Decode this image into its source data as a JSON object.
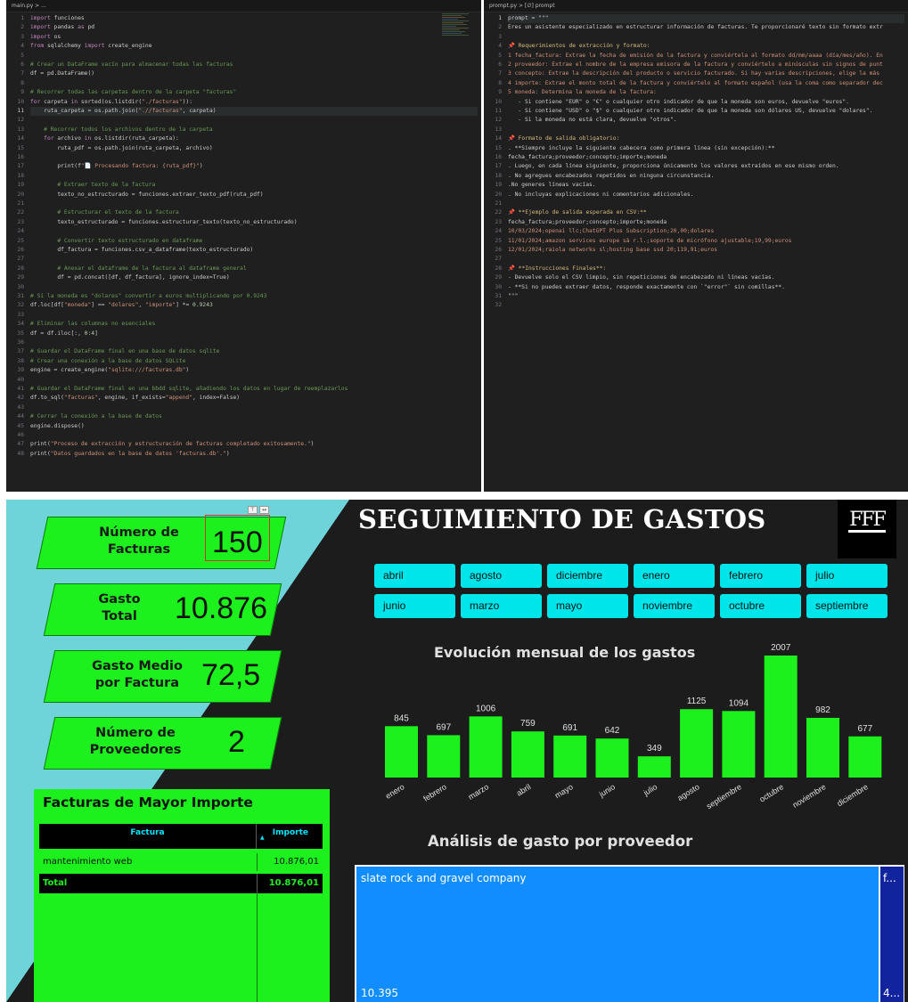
{
  "editor_left": {
    "tab": "main.py > ...",
    "lines": [
      "import funciones",
      "import pandas as pd",
      "import os",
      "from sqlalchemy import create_engine",
      "",
      "# Crear un DataFrame vacío para almacenar todas las facturas",
      "df = pd.DataFrame()",
      "",
      "# Recorrer todas las carpetas dentro de la carpeta \"facturas\"",
      "for carpeta in sorted(os.listdir(\"./facturas\")):",
      "    ruta_carpeta = os.path.join(\".//facturas\", carpeta)",
      "",
      "    # Recorrer todos los archivos dentro de la carpeta",
      "    for archivo in os.listdir(ruta_carpeta):",
      "        ruta_pdf = os.path.join(ruta_carpeta, archivo)",
      "",
      "        print(f\"📄 Procesando factura: {ruta_pdf}\")",
      "",
      "        # Extraer texto de la factura",
      "        texto_no_estructurado = funciones.extraer_texto_pdf(ruta_pdf)",
      "",
      "        # Estructurar el texto de la factura",
      "        texto_estructurado = funciones.estructurar_texto(texto_no_estructurado)",
      "",
      "        # Convertir texto estructurado en dataframe",
      "        df_factura = funciones.csv_a_dataframe(texto_estructurado)",
      "",
      "        # Anexar el dataframe de la factura al dataframe general",
      "        df = pd.concat([df, df_factura], ignore_index=True)",
      "",
      "# Si la moneda es \"dolares\" convertir a euros multiplicando por 0.9243",
      "df.loc[df[\"moneda\"] == \"dolares\", \"importe\"] *= 0.9243",
      "",
      "# Eliminar las columnas no esenciales",
      "df = df.iloc[:, 0:4]",
      "",
      "# Guardar el DataFrame final en una base de datos sqlite",
      "# Crear una conexión a la base de datos SQLite",
      "engine = create_engine(\"sqlite:///facturas.db\")",
      "",
      "# Guardar el DataFrame final en una bbdd sqlite, añadiendo los datos en lugar de reemplazarlos",
      "df.to_sql(\"facturas\", engine, if_exists=\"append\", index=False)",
      "",
      "# Cerrar la conexión a la base de datos",
      "engine.dispose()",
      "",
      "print(\"Proceso de extracción y estructuración de facturas completado exitosamente.\")",
      "print(\"Datos guardados en la base de datos 'facturas.db'.\")"
    ]
  },
  "editor_right": {
    "tab": "prompt.py > [∅] prompt",
    "lines": [
      "prompt = \"\"\"",
      "Eres un asistente especializado en estructurar información de facturas. Te proporcionaré texto sin formato extr",
      "",
      "📌 Requerimientos de extracción y formato:",
      "1 fecha_factura: Extrae la fecha de emisión de la factura y conviértela al formato dd/mm/aaaa (día/mes/año). En",
      "2 proveedor: Extrae el nombre de la empresa emisora de la factura y conviértelo a minúsculas sin signos de punt",
      "3 concepto: Extrae la descripción del producto o servicio facturado. Si hay varias descripciones, elige la más",
      "4 importe: Extrae el monto total de la factura y conviértelo al formato español (usa la coma como separador dec",
      "5 moneda: Determina la moneda de la factura:",
      "   - Si contiene \"EUR\" o \"€\" o cualquier otro indicador de que la moneda son euros, devuelve \"euros\".",
      "   - Si contiene \"USD\" o \"$\" o cualquier otro indicador de que la moneda son dólares US, devuelve \"dolares\".",
      "   - Si la moneda no está clara, devuelve \"otros\".",
      "",
      "📌 Formato de salida obligatorio:",
      ". **Siempre incluye la siguiente cabecera como primera línea (sin excepción):**",
      "fecha_factura;proveedor;concepto;importe;moneda",
      ". Luego, en cada línea siguiente, proporciona únicamente los valores extraídos en ese mismo orden.",
      ". No agregues encabezados repetidos en ninguna circunstancia.",
      ".No generes líneas vacías.",
      ". No incluyas explicaciones ni comentarios adicionales.",
      "",
      "📌 **Ejemplo de salida esperada en CSV:**",
      "fecha_factura;proveedor;concepto;importe;moneda",
      "10/03/2024;openai llc;ChatGPT Plus Subscription;20,00;dolares",
      "11/01/2024;amazon services europe sà r.l.;soporte de micrófono ajustable;19,99;euros",
      "12/01/2024;raiola networks sl;hosting base ssd 20;119,91;euros",
      "",
      "📌 **Instrucciones Finales**:",
      "- Devuelve solo el CSV limpio, sin repeticiones de encabezado ni líneas vacías.",
      "- **Si no puedes extraer datos, responde exactamente con `\"error\"` sin comillas**.",
      "\"\"\"",
      ""
    ]
  },
  "dashboard": {
    "title": "SEGUIMIENTO DE GASTOS",
    "logo": "FFF",
    "kpis": [
      {
        "label_1": "Número de",
        "label_2": "Facturas",
        "value": "150"
      },
      {
        "label_1": "Gasto",
        "label_2": "Total",
        "value": "10.876"
      },
      {
        "label_1": "Gasto Medio",
        "label_2": "por Factura",
        "value": "72,5"
      },
      {
        "label_1": "Número de",
        "label_2": "Proveedores",
        "value": "2"
      }
    ],
    "months": [
      "abril",
      "agosto",
      "diciembre",
      "enero",
      "febrero",
      "julio",
      "junio",
      "marzo",
      "mayo",
      "noviembre",
      "octubre",
      "septiembre"
    ],
    "table": {
      "title": "Facturas de Mayor Importe",
      "col1": "Factura",
      "col2": "Importe",
      "row": {
        "factura": "mantenimiento web",
        "importe": "10.876,01"
      },
      "total": {
        "label": "Total",
        "importe": "10.876,01"
      }
    },
    "chart_title": "Evolución mensual de los gastos",
    "tree_title": "Análisis de gasto por proveedor",
    "treemap": [
      {
        "name": "slate rock and gravel company",
        "value": "10.395",
        "color": "#118dff"
      },
      {
        "name": "f...",
        "value": "4...",
        "color": "#12239e"
      }
    ]
  },
  "chart_data": {
    "type": "bar",
    "title": "Evolución mensual de los gastos",
    "categories": [
      "enero",
      "febrero",
      "marzo",
      "abril",
      "mayo",
      "junio",
      "julio",
      "agosto",
      "septiembre",
      "octubre",
      "noviembre",
      "diciembre"
    ],
    "values": [
      845,
      697,
      1006,
      759,
      691,
      642,
      349,
      1125,
      1094,
      2007,
      982,
      677
    ],
    "color": "#1df11d",
    "ylim": [
      0,
      2007
    ]
  }
}
